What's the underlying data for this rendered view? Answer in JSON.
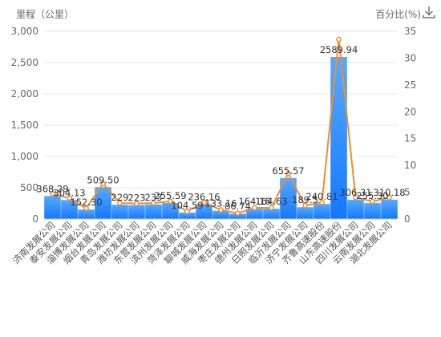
{
  "toolbar": {
    "download_icon": "download-icon"
  },
  "chart_data": {
    "type": "bar",
    "categories": [
      "济南发展公司",
      "泰安发展公司",
      "淄博发展公司",
      "烟台发展公司",
      "青岛发展公司",
      "潍坊发展公司",
      "东营发展公司",
      "滨州发展公司",
      "菏泽发展公司",
      "聊城发展公司",
      "威海发展公司",
      "枣庄发展公司",
      "德州发展公司",
      "日照发展公司",
      "临沂发展公司",
      "济宁发展公司",
      "齐鲁高速股份",
      "山东高速股份",
      "四川发展公司",
      "云南发展公司",
      "湖北发展公司"
    ],
    "series": [
      {
        "type": "bar",
        "axis": "left",
        "values": [
          368.29,
          304.13,
          152.3,
          509.5,
          229.29,
          223.33,
          233.38,
          255.59,
          104.59,
          236.16,
          133.16,
          86.74,
          164.16,
          164.63,
          655.57,
          189.5,
          240.81,
          2589.94,
          306.31,
          255.3,
          310.18
        ],
        "labels": [
          "368.29",
          "304.13",
          "152.30",
          "509.50",
          "229",
          "223",
          "233",
          "255.59",
          "104.59",
          "236.16",
          "133.16",
          "86.74",
          "164.16",
          "164.63",
          "655.57",
          "189.5",
          "240.81",
          "2589.94",
          "306.31",
          "255.30",
          "310.18"
        ]
      },
      {
        "type": "line",
        "axis": "right",
        "values": [
          4.7,
          3.9,
          2.0,
          6.6,
          3.0,
          2.9,
          3.0,
          3.3,
          1.4,
          3.1,
          1.7,
          1.1,
          2.1,
          2.1,
          8.5,
          2.5,
          3.1,
          33.5,
          4.0,
          3.3,
          4.0
        ]
      }
    ],
    "y_left": {
      "name": "里程（公里）",
      "min": 0,
      "max": 3000,
      "ticks": [
        0,
        500,
        1000,
        1500,
        2000,
        2500,
        3000
      ],
      "tick_labels": [
        "0",
        "500",
        "1,000",
        "1,500",
        "2,000",
        "2,500",
        "3,000"
      ]
    },
    "y_right": {
      "name": "百分比(%)",
      "min": 0,
      "max": 35,
      "ticks": [
        0,
        5,
        10,
        15,
        20,
        25,
        30,
        35
      ],
      "tick_labels": [
        "0",
        "5",
        "10",
        "15",
        "20",
        "25",
        "30",
        "35"
      ]
    },
    "grid": true,
    "legend": "none",
    "colors": {
      "bar_top": "#55aaff",
      "bar_bottom": "#1677ff",
      "line": "#f08c2e",
      "grid": "#e6e6e6",
      "text": "#666666"
    }
  }
}
